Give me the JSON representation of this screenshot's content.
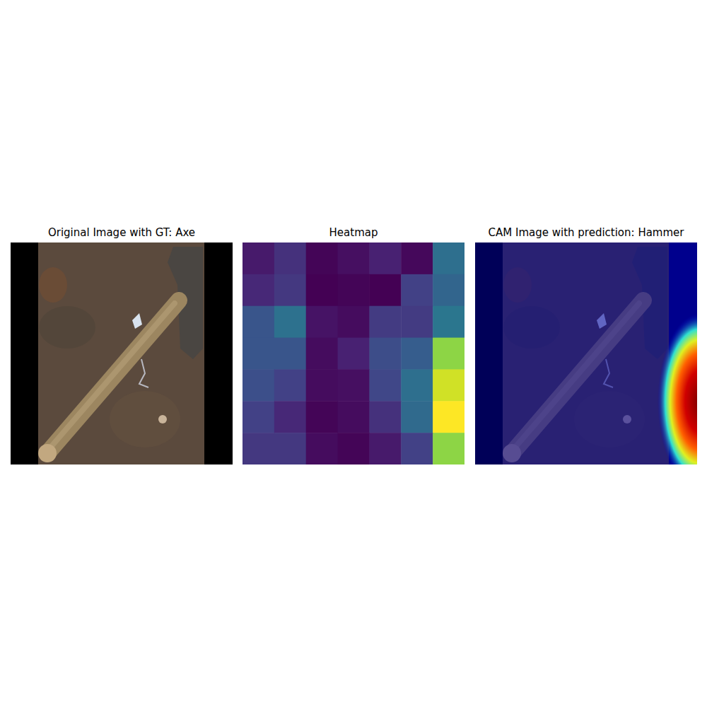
{
  "chart_data": [
    {
      "type": "image",
      "title": "Original Image with GT: Axe",
      "tick_labels": false
    },
    {
      "type": "heatmap",
      "title": "Heatmap",
      "tick_labels": false,
      "cells": [
        [
          0.08,
          0.15,
          0.02,
          0.05,
          0.1,
          0.03,
          0.37
        ],
        [
          0.12,
          0.17,
          0.01,
          0.02,
          0.01,
          0.2,
          0.33
        ],
        [
          0.27,
          0.38,
          0.06,
          0.04,
          0.18,
          0.18,
          0.4
        ],
        [
          0.27,
          0.27,
          0.04,
          0.1,
          0.24,
          0.3,
          0.83
        ],
        [
          0.25,
          0.2,
          0.04,
          0.05,
          0.22,
          0.37,
          0.93
        ],
        [
          0.2,
          0.12,
          0.02,
          0.04,
          0.15,
          0.35,
          1.0
        ],
        [
          0.17,
          0.17,
          0.04,
          0.02,
          0.08,
          0.2,
          0.83
        ]
      ]
    },
    {
      "type": "image",
      "title": "CAM Image with prediction: Hammer",
      "tick_labels": false
    }
  ]
}
